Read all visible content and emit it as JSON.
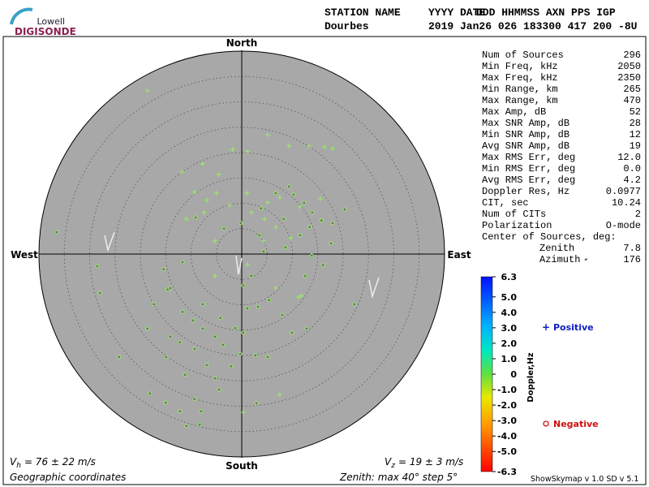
{
  "header": {
    "logo_top": "Lowell",
    "logo_bottom": "DIGISONDE",
    "station_label": "STATION NAME",
    "date_label": "YYYY DATE",
    "code_label": "DDD HHMMSS AXN PPS IGP",
    "station": "Dourbes",
    "date_code": "2019 Jan26 026 183300 417 200 -8U"
  },
  "stats": {
    "rows": [
      [
        "Num of Sources",
        "296"
      ],
      [
        "Min Freq, kHz",
        "2050"
      ],
      [
        "Max Freq, kHz",
        "2350"
      ],
      [
        "Min Range, km",
        "265"
      ],
      [
        "Max Range, km",
        "470"
      ],
      [
        "Max Amp, dB",
        "52"
      ],
      [
        "Max SNR Amp, dB",
        "28"
      ],
      [
        "Min SNR Amp, dB",
        "12"
      ],
      [
        "Avg SNR Amp, dB",
        "19"
      ],
      [
        "Max RMS Err, deg",
        "12.0"
      ],
      [
        "Min RMS Err, deg",
        "0.0"
      ],
      [
        "Avg RMS Err, deg",
        "4.2"
      ],
      [
        "Doppler Res, Hz",
        "0.0977"
      ],
      [
        "CIT, sec",
        "10.24"
      ],
      [
        "Num of CITs",
        "2"
      ],
      [
        "Polarization",
        "O-mode"
      ]
    ],
    "center_title": "Center of Sources, deg:",
    "center_rows": [
      [
        "Zenith",
        "7.8"
      ],
      [
        "Azimuth",
        "176"
      ]
    ]
  },
  "chart_data": {
    "type": "skymap",
    "directions": {
      "north": "North",
      "south": "South",
      "east": "East",
      "west": "West"
    },
    "zenith_max": 40,
    "zenith_step": 5,
    "series": [
      {
        "name": "Positive",
        "marker": "plus",
        "color": "#99ee66",
        "x": [
          -18.6,
          5.1,
          9.3,
          13.3,
          16.3,
          17.9,
          -1.8,
          1.1,
          -7.7,
          -11.8,
          -4.5,
          -9.3,
          -5,
          -6.9,
          1,
          5.1,
          -2.4,
          1.9,
          4.5,
          6.7,
          11.5,
          7.5,
          15.5,
          9.6,
          4.3,
          -5.3,
          1.1,
          -5.3,
          6.7,
          11.2,
          11.8,
          7.5,
          0.3,
          -7.4,
          -10.9
        ],
        "y": [
          32.2,
          23.5,
          21.3,
          21.3,
          21.1,
          20.8,
          20.6,
          20.2,
          17.8,
          16.2,
          15.7,
          12.2,
          12,
          10.6,
          12,
          10.2,
          9.6,
          8.2,
          6.9,
          5.3,
          9.3,
          11.2,
          10.9,
          3.2,
          2.6,
          2.6,
          -2.1,
          -4.3,
          -6.7,
          -8.5,
          -8.2,
          -27.7,
          -31.2,
          8.2,
          6.9
        ]
      },
      {
        "name": "Negative",
        "marker": "circle",
        "color": "#99ee66",
        "x": [
          -36.5,
          -28.5,
          -28,
          -24.2,
          -18.1,
          -15,
          -10.9,
          -8.3,
          -8,
          -12.2,
          -9.3,
          -4.5,
          -5.3,
          -11.2,
          -14.9,
          -18.6,
          -17.3,
          -14.6,
          -11.7,
          -9.6,
          -7.7,
          -5.3,
          -3.7,
          -1.3,
          0.3,
          -0.3,
          -2.1,
          2.7,
          5.1,
          2.9,
          -6.9,
          -9.3,
          -12.2,
          -14.1,
          -7.7,
          -4.2,
          1.1,
          3.2,
          5.4,
          8,
          9.9,
          12.8,
          13.8,
          16,
          12.5,
          22.2,
          0.3,
          1.9,
          4.3,
          8.6,
          11.5,
          13.4,
          15.7,
          17.9,
          20.3,
          9.3,
          6.7,
          10.2,
          12.3,
          13.9,
          3.8,
          -0.2,
          8.3,
          3.5,
          -11.7,
          -15.4,
          -14.1,
          -9.1,
          -3.5,
          17.6
        ],
        "y": [
          4.3,
          -2.4,
          -7.7,
          -20.3,
          -27.5,
          -29.3,
          -33.9,
          -33.6,
          -31,
          -31,
          -28.6,
          -26.7,
          -24.5,
          -23.8,
          -20.3,
          -14.7,
          -9.9,
          -7,
          -11.4,
          -13.1,
          -14.7,
          -16.3,
          -17.9,
          -14.6,
          -15.5,
          -19.7,
          -22.1,
          -20,
          -20.3,
          -29.4,
          -21.9,
          -18.7,
          -17.4,
          -16.3,
          -9.9,
          -12.6,
          -10.7,
          -10.4,
          -9.1,
          -12,
          -15.5,
          -14.7,
          -0.3,
          -2.2,
          -4.3,
          -9.9,
          -6.2,
          -4.3,
          0.5,
          1.3,
          3.7,
          5.3,
          6.6,
          6.1,
          8.8,
          13.3,
          12,
          11.7,
          10.1,
          8.2,
          9,
          6.1,
          6.9,
          3.7,
          -1.6,
          -3,
          -6.7,
          7.2,
          5,
          2.1
        ]
      }
    ],
    "colorbar": {
      "label": "Doppler,Hz",
      "lim": [
        -6.3,
        6.3
      ],
      "ticks": [
        6.3,
        {
          "value": 5,
          "label": "5.0"
        },
        {
          "value": 4,
          "label": "4.0"
        },
        {
          "value": 3,
          "label": "3.0"
        },
        {
          "value": 2,
          "label": "2.0"
        },
        {
          "value": 1,
          "label": "1.0"
        },
        0,
        {
          "value": -1,
          "label": "-1.0"
        },
        {
          "value": -2,
          "label": "-2.0"
        },
        {
          "value": -3,
          "label": "-3.0"
        },
        {
          "value": -4,
          "label": "-4.0"
        },
        {
          "value": -5,
          "label": "-5.0"
        },
        -6.3
      ]
    },
    "footer": {
      "vh_symbol": "V",
      "vh_sub": "h",
      "vh_text": "= 76 ± 22 m/s",
      "vz_symbol": "V",
      "vz_sub": "z",
      "vz_text": "= 19 ± 3 m/s",
      "coords": "Geographic coordinates",
      "zenith": "Zenith: max 40°  step 5°",
      "version": "ShowSkymap v 1.0   SD v 5.1"
    }
  }
}
